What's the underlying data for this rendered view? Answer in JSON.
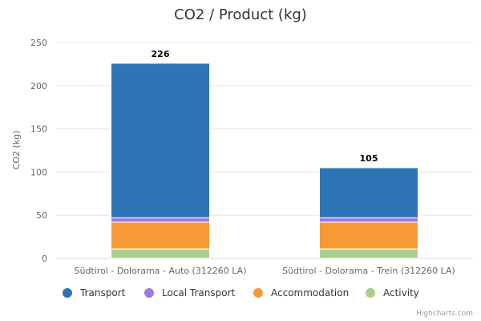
{
  "chart_data": {
    "type": "bar",
    "stacked": true,
    "title": "CO2 / Product (kg)",
    "ylabel": "CO2 (kg)",
    "xlabel": "",
    "ylim": [
      0,
      250
    ],
    "yticks": [
      0,
      50,
      100,
      150,
      200,
      250
    ],
    "grid": true,
    "legend_position": "bottom",
    "categories": [
      "Südtirol - Dolorama - Auto (312260 LA)",
      "Südtirol - Dolorama - Trein (312260 LA)"
    ],
    "series": [
      {
        "name": "Activity",
        "color": "#a8d08d",
        "values": [
          11,
          11
        ]
      },
      {
        "name": "Accommodation",
        "color": "#f79a36",
        "values": [
          31,
          31
        ]
      },
      {
        "name": "Local Transport",
        "color": "#9e7be0",
        "values": [
          5,
          5
        ]
      },
      {
        "name": "Transport",
        "color": "#2e75b6",
        "values": [
          179,
          58
        ]
      }
    ],
    "totals": [
      "226",
      "105"
    ],
    "legend_order": [
      "Transport",
      "Local Transport",
      "Accommodation",
      "Activity"
    ]
  },
  "credits": "Highcharts.com"
}
